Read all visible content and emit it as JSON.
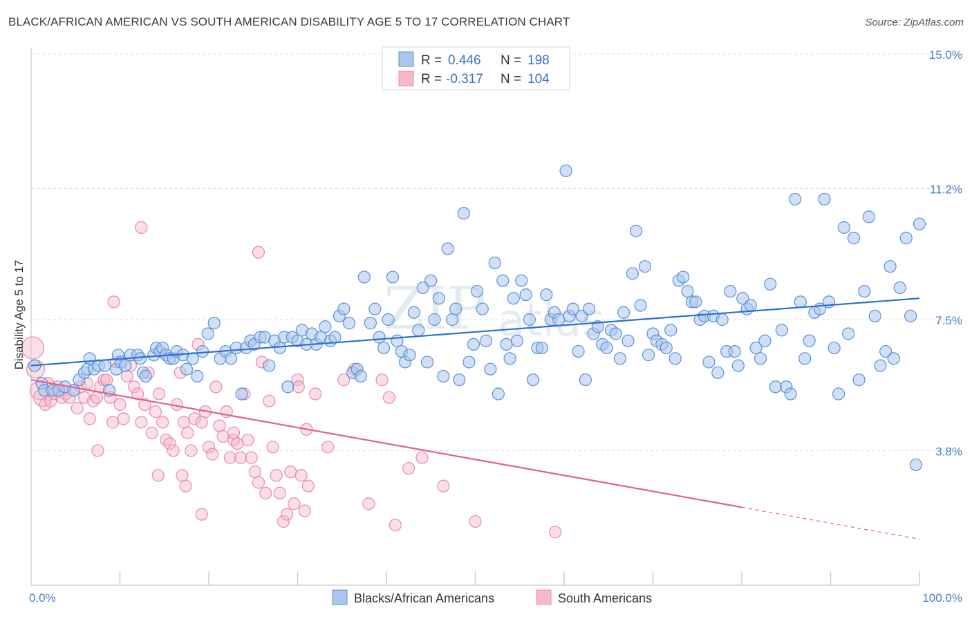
{
  "title": "BLACK/AFRICAN AMERICAN VS SOUTH AMERICAN DISABILITY AGE 5 TO 17 CORRELATION CHART",
  "source": "Source: ZipAtlas.com",
  "watermark": {
    "zip": "ZIP",
    "atlas": "atlas"
  },
  "colors": {
    "blue_fill": "#a9c6ee",
    "blue_stroke": "#5b8fd6",
    "blue_line": "#2e6fd0",
    "pink_fill": "#f5b9cb",
    "pink_stroke": "#e889a8",
    "pink_line": "#e0608c",
    "tick_text": "#4a7cc8",
    "grid": "#d9dde3"
  },
  "legend": {
    "blue": {
      "r_label": "R =",
      "r_value": "0.446",
      "n_label": "N =",
      "n_value": "198"
    },
    "pink": {
      "r_label": "R =",
      "r_value": "-0.317",
      "n_label": "N =",
      "n_value": "104"
    }
  },
  "chart_data": {
    "type": "scatter",
    "title": "BLACK/AFRICAN AMERICAN VS SOUTH AMERICAN DISABILITY AGE 5 TO 17 CORRELATION CHART",
    "xlabel": "",
    "ylabel": "Disability Age 5 to 17",
    "xlim": [
      0,
      100
    ],
    "ylim": [
      0,
      15.0
    ],
    "x_tick_labels": [
      {
        "value": 0,
        "label": "0.0%"
      },
      {
        "value": 100,
        "label": "100.0%"
      }
    ],
    "y_tick_labels": [
      {
        "value": 3.8,
        "label": "3.8%"
      },
      {
        "value": 7.5,
        "label": "7.5%"
      },
      {
        "value": 11.2,
        "label": "11.2%"
      },
      {
        "value": 15.0,
        "label": "15.0%"
      }
    ],
    "grid": true,
    "legend_position": "top-center",
    "series": [
      {
        "name": "Blacks/African Americans",
        "color": "#a9c6ee",
        "trend": {
          "x": [
            0,
            100
          ],
          "y": [
            6.2,
            8.1
          ]
        },
        "points": [
          [
            0.4,
            6.2
          ],
          [
            1.2,
            5.7
          ],
          [
            1.5,
            5.5
          ],
          [
            2.4,
            5.5
          ],
          [
            3.1,
            5.5
          ],
          [
            3.8,
            5.6
          ],
          [
            4.8,
            5.5
          ],
          [
            5.4,
            5.8
          ],
          [
            6.0,
            6.0
          ],
          [
            6.3,
            6.1
          ],
          [
            6.6,
            6.4
          ],
          [
            7.1,
            6.1
          ],
          [
            7.6,
            6.2
          ],
          [
            8.3,
            6.2
          ],
          [
            8.8,
            5.5
          ],
          [
            9.6,
            6.1
          ],
          [
            9.8,
            6.5
          ],
          [
            10.1,
            6.3
          ],
          [
            10.6,
            6.2
          ],
          [
            11.2,
            6.5
          ],
          [
            12.0,
            6.5
          ],
          [
            12.3,
            6.4
          ],
          [
            12.6,
            6.0
          ],
          [
            12.9,
            5.9
          ],
          [
            13.8,
            6.5
          ],
          [
            14.1,
            6.7
          ],
          [
            14.5,
            6.6
          ],
          [
            14.8,
            6.7
          ],
          [
            15.2,
            6.5
          ],
          [
            15.6,
            6.4
          ],
          [
            16.0,
            6.4
          ],
          [
            16.4,
            6.6
          ],
          [
            17.1,
            6.5
          ],
          [
            17.5,
            6.1
          ],
          [
            18.2,
            6.4
          ],
          [
            18.7,
            5.9
          ],
          [
            19.3,
            6.6
          ],
          [
            19.9,
            7.1
          ],
          [
            20.6,
            7.4
          ],
          [
            21.3,
            6.4
          ],
          [
            21.9,
            6.6
          ],
          [
            22.5,
            6.4
          ],
          [
            23.1,
            6.7
          ],
          [
            23.7,
            5.4
          ],
          [
            24.2,
            6.7
          ],
          [
            24.7,
            6.9
          ],
          [
            25.1,
            6.8
          ],
          [
            25.8,
            7.0
          ],
          [
            26.3,
            7.0
          ],
          [
            26.8,
            6.2
          ],
          [
            27.4,
            6.9
          ],
          [
            28.0,
            6.7
          ],
          [
            28.5,
            7.0
          ],
          [
            28.9,
            5.6
          ],
          [
            29.4,
            7.0
          ],
          [
            30.0,
            6.9
          ],
          [
            30.5,
            7.2
          ],
          [
            31.0,
            6.8
          ],
          [
            31.6,
            7.1
          ],
          [
            32.1,
            6.8
          ],
          [
            32.6,
            7.0
          ],
          [
            33.1,
            7.3
          ],
          [
            33.7,
            6.9
          ],
          [
            34.2,
            7.0
          ],
          [
            34.7,
            7.6
          ],
          [
            35.2,
            7.8
          ],
          [
            35.8,
            7.4
          ],
          [
            36.2,
            6.0
          ],
          [
            36.7,
            6.1
          ],
          [
            37.1,
            5.9
          ],
          [
            37.5,
            8.7
          ],
          [
            38.2,
            7.4
          ],
          [
            38.7,
            7.8
          ],
          [
            39.2,
            7.0
          ],
          [
            39.7,
            6.7
          ],
          [
            40.2,
            7.5
          ],
          [
            40.7,
            8.7
          ],
          [
            41.2,
            6.9
          ],
          [
            41.7,
            6.6
          ],
          [
            42.1,
            6.3
          ],
          [
            42.6,
            6.5
          ],
          [
            43.1,
            7.7
          ],
          [
            43.6,
            7.2
          ],
          [
            44.1,
            8.4
          ],
          [
            44.6,
            6.3
          ],
          [
            45.0,
            8.6
          ],
          [
            45.4,
            7.5
          ],
          [
            45.9,
            8.1
          ],
          [
            46.4,
            5.9
          ],
          [
            46.9,
            9.5
          ],
          [
            47.4,
            7.5
          ],
          [
            47.8,
            7.8
          ],
          [
            48.2,
            5.8
          ],
          [
            48.7,
            10.5
          ],
          [
            49.3,
            6.3
          ],
          [
            49.8,
            6.8
          ],
          [
            50.2,
            8.3
          ],
          [
            50.8,
            7.8
          ],
          [
            51.2,
            6.9
          ],
          [
            51.7,
            6.1
          ],
          [
            52.2,
            9.1
          ],
          [
            52.6,
            5.4
          ],
          [
            53.1,
            8.6
          ],
          [
            53.5,
            6.8
          ],
          [
            53.9,
            6.4
          ],
          [
            54.3,
            8.1
          ],
          [
            54.7,
            6.9
          ],
          [
            55.2,
            8.6
          ],
          [
            55.7,
            8.2
          ],
          [
            56.1,
            7.5
          ],
          [
            56.5,
            5.8
          ],
          [
            57.0,
            6.7
          ],
          [
            57.5,
            6.7
          ],
          [
            58.0,
            8.2
          ],
          [
            58.5,
            7.5
          ],
          [
            58.9,
            7.7
          ],
          [
            59.4,
            7.5
          ],
          [
            60.2,
            11.7
          ],
          [
            60.6,
            7.6
          ],
          [
            61.0,
            7.8
          ],
          [
            61.6,
            6.6
          ],
          [
            62.0,
            7.6
          ],
          [
            62.4,
            5.8
          ],
          [
            62.8,
            7.8
          ],
          [
            63.3,
            7.1
          ],
          [
            63.8,
            7.3
          ],
          [
            64.3,
            6.8
          ],
          [
            64.8,
            6.7
          ],
          [
            65.3,
            7.2
          ],
          [
            65.8,
            7.1
          ],
          [
            66.3,
            6.4
          ],
          [
            66.7,
            7.7
          ],
          [
            67.2,
            6.9
          ],
          [
            67.7,
            8.8
          ],
          [
            68.1,
            10.0
          ],
          [
            68.6,
            7.9
          ],
          [
            69.1,
            9.0
          ],
          [
            69.5,
            6.5
          ],
          [
            70.0,
            7.1
          ],
          [
            70.4,
            6.9
          ],
          [
            71.0,
            6.8
          ],
          [
            71.5,
            6.7
          ],
          [
            72.0,
            7.2
          ],
          [
            72.5,
            6.4
          ],
          [
            72.9,
            8.6
          ],
          [
            73.4,
            8.7
          ],
          [
            73.9,
            8.3
          ],
          [
            74.4,
            8.0
          ],
          [
            74.8,
            8.0
          ],
          [
            75.3,
            7.5
          ],
          [
            75.8,
            7.6
          ],
          [
            76.3,
            6.3
          ],
          [
            76.8,
            7.6
          ],
          [
            77.3,
            6.0
          ],
          [
            77.8,
            7.5
          ],
          [
            78.3,
            6.6
          ],
          [
            78.7,
            8.3
          ],
          [
            79.2,
            6.6
          ],
          [
            79.6,
            6.2
          ],
          [
            80.1,
            8.1
          ],
          [
            80.6,
            7.8
          ],
          [
            81.0,
            7.9
          ],
          [
            81.6,
            6.7
          ],
          [
            82.1,
            6.4
          ],
          [
            82.6,
            6.9
          ],
          [
            83.2,
            8.5
          ],
          [
            83.8,
            5.6
          ],
          [
            84.5,
            7.2
          ],
          [
            85.0,
            5.6
          ],
          [
            85.5,
            5.4
          ],
          [
            86.0,
            10.9
          ],
          [
            86.6,
            8.0
          ],
          [
            87.1,
            6.4
          ],
          [
            87.6,
            6.9
          ],
          [
            88.2,
            7.7
          ],
          [
            88.8,
            7.8
          ],
          [
            89.3,
            10.9
          ],
          [
            89.8,
            8.0
          ],
          [
            90.4,
            6.7
          ],
          [
            90.9,
            5.4
          ],
          [
            91.5,
            10.1
          ],
          [
            92.0,
            7.1
          ],
          [
            92.6,
            9.8
          ],
          [
            93.2,
            5.8
          ],
          [
            93.8,
            8.3
          ],
          [
            94.3,
            10.4
          ],
          [
            95.0,
            7.6
          ],
          [
            95.6,
            6.2
          ],
          [
            96.2,
            6.6
          ],
          [
            96.7,
            9.0
          ],
          [
            97.1,
            6.4
          ],
          [
            97.8,
            8.4
          ],
          [
            98.5,
            9.8
          ],
          [
            99.0,
            7.6
          ],
          [
            99.6,
            3.4
          ],
          [
            100.0,
            10.2
          ]
        ]
      },
      {
        "name": "South Americans",
        "color": "#f5b9cb",
        "trend": {
          "x": [
            0,
            80
          ],
          "y": [
            5.8,
            2.2
          ]
        },
        "trend_dashed": {
          "x": [
            80,
            100
          ],
          "y": [
            2.2,
            1.3
          ]
        },
        "points": [
          [
            0.2,
            6.7
          ],
          [
            0.5,
            6.1
          ],
          [
            0.9,
            5.5
          ],
          [
            1.3,
            5.3
          ],
          [
            1.6,
            5.1
          ],
          [
            1.9,
            5.7
          ],
          [
            2.2,
            5.2
          ],
          [
            2.6,
            5.4
          ],
          [
            3.0,
            5.6
          ],
          [
            3.5,
            5.3
          ],
          [
            3.9,
            5.4
          ],
          [
            4.3,
            5.3
          ],
          [
            4.8,
            5.5
          ],
          [
            5.2,
            5.0
          ],
          [
            5.6,
            5.6
          ],
          [
            6.0,
            5.3
          ],
          [
            6.3,
            5.7
          ],
          [
            6.6,
            4.7
          ],
          [
            7.0,
            5.2
          ],
          [
            7.4,
            5.3
          ],
          [
            7.8,
            5.6
          ],
          [
            8.2,
            5.8
          ],
          [
            8.5,
            5.8
          ],
          [
            8.9,
            5.3
          ],
          [
            9.2,
            4.6
          ],
          [
            9.6,
            6.3
          ],
          [
            10.0,
            5.1
          ],
          [
            10.4,
            4.7
          ],
          [
            10.8,
            5.9
          ],
          [
            11.2,
            6.2
          ],
          [
            11.6,
            5.6
          ],
          [
            12.0,
            5.4
          ],
          [
            12.4,
            4.6
          ],
          [
            12.8,
            5.1
          ],
          [
            13.2,
            6.0
          ],
          [
            13.6,
            4.3
          ],
          [
            14.0,
            4.9
          ],
          [
            14.4,
            5.4
          ],
          [
            14.8,
            4.6
          ],
          [
            15.2,
            4.1
          ],
          [
            15.6,
            4.0
          ],
          [
            16.0,
            3.8
          ],
          [
            16.4,
            5.1
          ],
          [
            16.8,
            6.0
          ],
          [
            17.2,
            4.6
          ],
          [
            17.6,
            4.3
          ],
          [
            18.0,
            3.8
          ],
          [
            18.4,
            4.7
          ],
          [
            18.8,
            6.8
          ],
          [
            19.2,
            4.6
          ],
          [
            19.6,
            4.9
          ],
          [
            20.0,
            3.9
          ],
          [
            20.4,
            3.7
          ],
          [
            20.8,
            5.6
          ],
          [
            21.2,
            4.5
          ],
          [
            21.6,
            4.2
          ],
          [
            22.0,
            4.9
          ],
          [
            22.4,
            3.6
          ],
          [
            22.8,
            4.1
          ],
          [
            23.2,
            4.0
          ],
          [
            23.6,
            3.6
          ],
          [
            24.0,
            5.4
          ],
          [
            24.4,
            4.1
          ],
          [
            24.8,
            3.6
          ],
          [
            25.2,
            3.2
          ],
          [
            25.6,
            2.9
          ],
          [
            26.0,
            6.3
          ],
          [
            26.4,
            2.6
          ],
          [
            26.8,
            5.2
          ],
          [
            27.2,
            3.9
          ],
          [
            27.6,
            3.1
          ],
          [
            28.0,
            2.6
          ],
          [
            28.4,
            1.8
          ],
          [
            28.8,
            2.0
          ],
          [
            29.2,
            3.2
          ],
          [
            29.6,
            2.3
          ],
          [
            30.0,
            5.8
          ],
          [
            30.4,
            3.1
          ],
          [
            30.8,
            2.1
          ],
          [
            31.2,
            2.8
          ],
          [
            7.5,
            3.8
          ],
          [
            9.3,
            8.0
          ],
          [
            12.4,
            10.1
          ],
          [
            14.3,
            3.1
          ],
          [
            17.0,
            3.1
          ],
          [
            17.4,
            2.8
          ],
          [
            19.2,
            2.0
          ],
          [
            22.8,
            4.3
          ],
          [
            25.6,
            9.4
          ],
          [
            30.1,
            5.6
          ],
          [
            31.0,
            4.4
          ],
          [
            32.0,
            5.4
          ],
          [
            33.4,
            3.9
          ],
          [
            35.2,
            5.8
          ],
          [
            36.4,
            6.1
          ],
          [
            38.0,
            2.3
          ],
          [
            39.5,
            5.8
          ],
          [
            40.3,
            5.3
          ],
          [
            41.0,
            1.7
          ],
          [
            42.5,
            3.3
          ],
          [
            44.0,
            3.6
          ],
          [
            46.4,
            2.8
          ],
          [
            50.0,
            1.8
          ],
          [
            59.0,
            1.5
          ]
        ]
      }
    ]
  },
  "bottom_legend": {
    "blue": "Blacks/African Americans",
    "pink": "South Americans"
  }
}
